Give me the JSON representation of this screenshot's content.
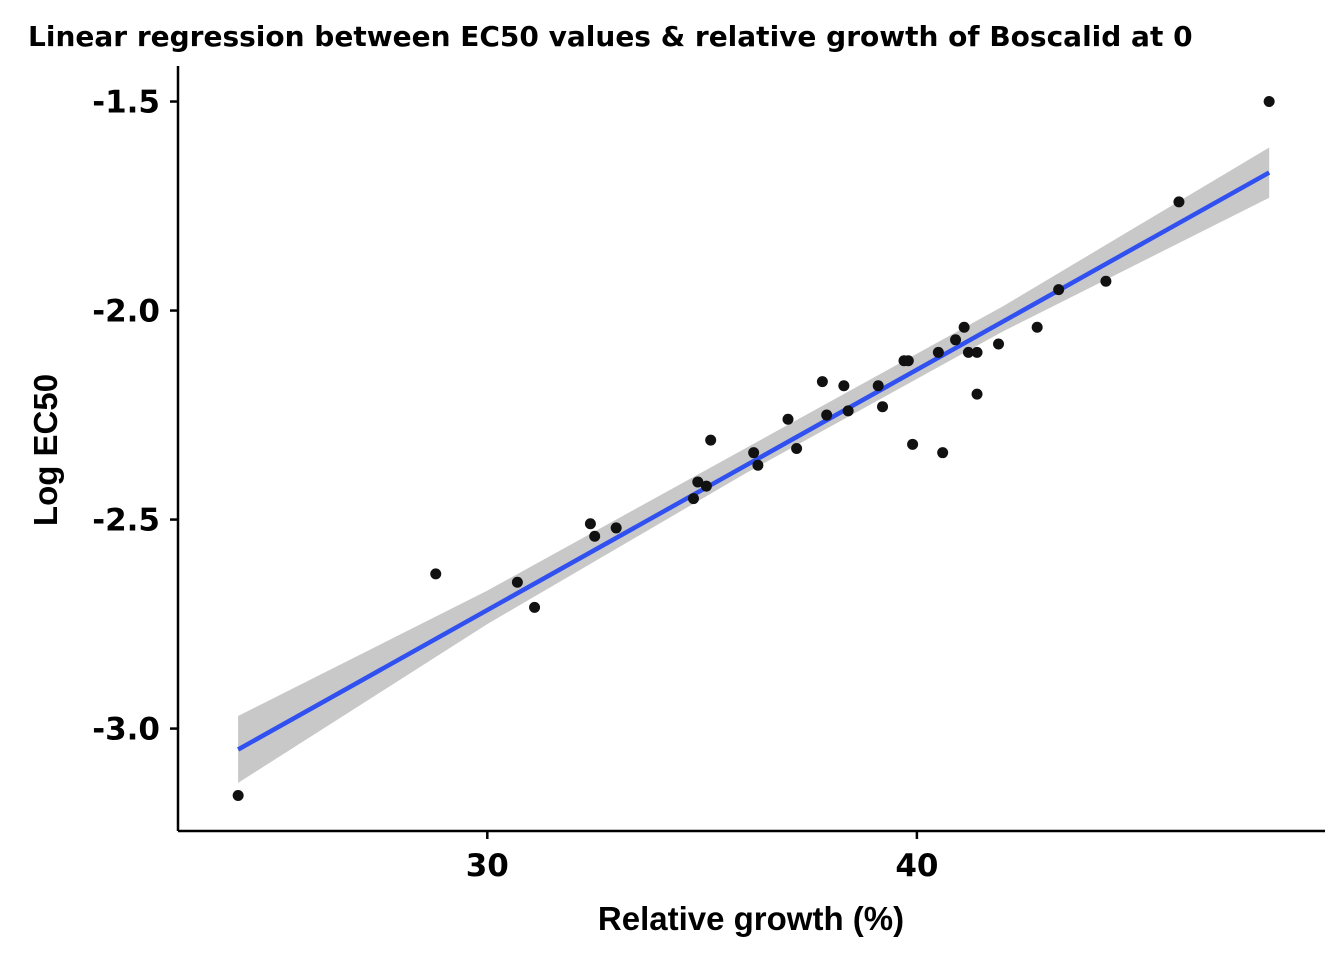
{
  "chart_data": {
    "type": "scatter",
    "title": "Linear regression between EC50 values & relative growth of Boscalid at 0",
    "xlabel": "Relative growth (%)",
    "ylabel": "Log EC50",
    "xlim": [
      22.8,
      49.5
    ],
    "ylim": [
      -3.245,
      -1.415
    ],
    "x_ticks": [
      30,
      40
    ],
    "x_tick_labels": [
      "30",
      "40"
    ],
    "y_ticks": [
      -3.0,
      -2.5,
      -2.0,
      -1.5
    ],
    "y_tick_labels": [
      "-3.0",
      "-2.5",
      "-2.0",
      "-1.5"
    ],
    "grid": false,
    "legend": "none",
    "colors": {
      "points": "#111111",
      "fit_line": "#3050f0",
      "confidence_band": "#c8c8c8"
    },
    "points": [
      {
        "x": 24.2,
        "y": -3.16
      },
      {
        "x": 28.8,
        "y": -2.63
      },
      {
        "x": 30.7,
        "y": -2.65
      },
      {
        "x": 31.1,
        "y": -2.71
      },
      {
        "x": 32.4,
        "y": -2.51
      },
      {
        "x": 32.5,
        "y": -2.54
      },
      {
        "x": 33.0,
        "y": -2.52
      },
      {
        "x": 34.8,
        "y": -2.45
      },
      {
        "x": 34.9,
        "y": -2.41
      },
      {
        "x": 35.1,
        "y": -2.42
      },
      {
        "x": 35.2,
        "y": -2.31
      },
      {
        "x": 36.2,
        "y": -2.34
      },
      {
        "x": 36.3,
        "y": -2.37
      },
      {
        "x": 37.0,
        "y": -2.26
      },
      {
        "x": 37.2,
        "y": -2.33
      },
      {
        "x": 37.8,
        "y": -2.17
      },
      {
        "x": 37.9,
        "y": -2.25
      },
      {
        "x": 38.3,
        "y": -2.18
      },
      {
        "x": 38.4,
        "y": -2.24
      },
      {
        "x": 39.1,
        "y": -2.18
      },
      {
        "x": 39.2,
        "y": -2.23
      },
      {
        "x": 39.7,
        "y": -2.12
      },
      {
        "x": 39.8,
        "y": -2.12
      },
      {
        "x": 39.9,
        "y": -2.32
      },
      {
        "x": 40.5,
        "y": -2.1
      },
      {
        "x": 40.6,
        "y": -2.34
      },
      {
        "x": 40.9,
        "y": -2.07
      },
      {
        "x": 41.1,
        "y": -2.04
      },
      {
        "x": 41.2,
        "y": -2.1
      },
      {
        "x": 41.4,
        "y": -2.1
      },
      {
        "x": 41.4,
        "y": -2.2
      },
      {
        "x": 41.9,
        "y": -2.08
      },
      {
        "x": 42.8,
        "y": -2.04
      },
      {
        "x": 43.3,
        "y": -1.95
      },
      {
        "x": 44.4,
        "y": -1.93
      },
      {
        "x": 46.1,
        "y": -1.74
      },
      {
        "x": 48.2,
        "y": -1.5
      }
    ],
    "fit": {
      "x": [
        24.2,
        48.2
      ],
      "y": [
        -3.05,
        -1.67
      ],
      "band": [
        {
          "x": 24.2,
          "lower": -3.13,
          "upper": -2.97
        },
        {
          "x": 30.0,
          "lower": -2.75,
          "upper": -2.67
        },
        {
          "x": 36.0,
          "lower": -2.39,
          "upper": -2.33
        },
        {
          "x": 42.0,
          "lower": -2.05,
          "upper": -1.99
        },
        {
          "x": 48.2,
          "lower": -1.73,
          "upper": -1.61
        }
      ]
    }
  }
}
